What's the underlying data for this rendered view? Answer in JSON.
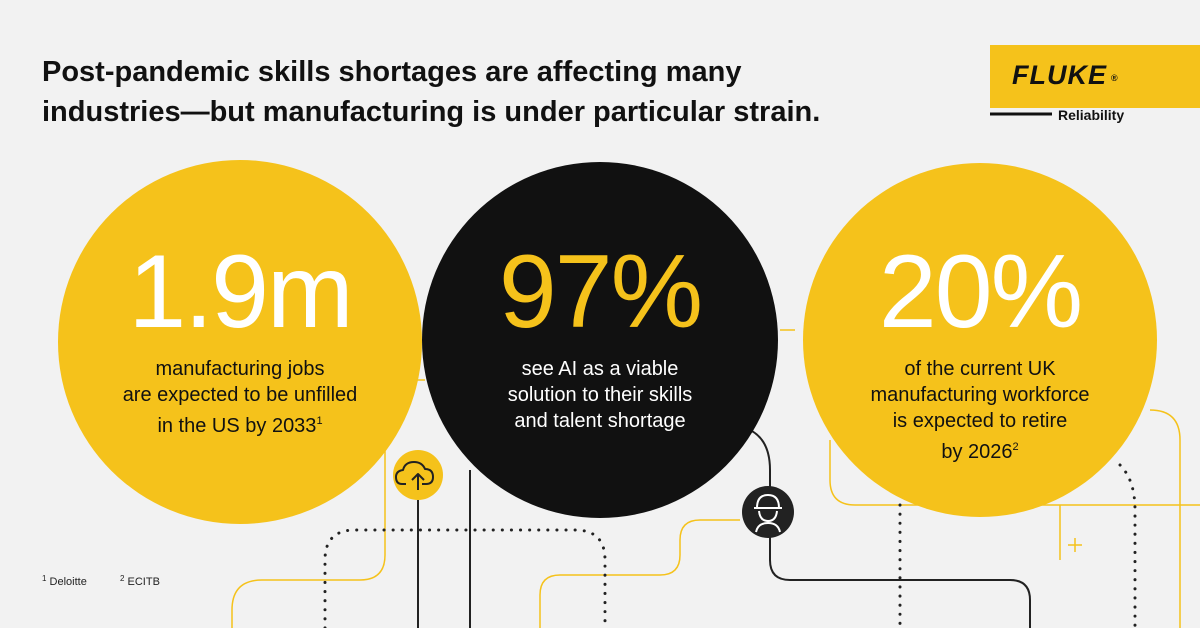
{
  "headline": {
    "lines": [
      "Post-pandemic skills shortages are affecting many",
      "industries—but manufacturing is under particular strain."
    ]
  },
  "logo": {
    "brand": "FLUKE",
    "mark": "®",
    "tagline": "Reliability"
  },
  "stats": [
    {
      "figure": "1.9m",
      "lines": [
        "manufacturing jobs",
        "are expected to be unfilled",
        "in the US by 2033"
      ],
      "note": "1"
    },
    {
      "figure": "97%",
      "lines": [
        "see AI as a viable",
        "solution to their skills",
        "and talent shortage"
      ]
    },
    {
      "figure": "20%",
      "lines": [
        "of the current UK",
        "manufacturing workforce",
        "is expected to retire",
        "by 2026"
      ],
      "note": "2"
    }
  ],
  "footnotes": [
    {
      "mark": "1",
      "source": "Deloitte"
    },
    {
      "mark": "2",
      "source": "ECITB"
    }
  ]
}
